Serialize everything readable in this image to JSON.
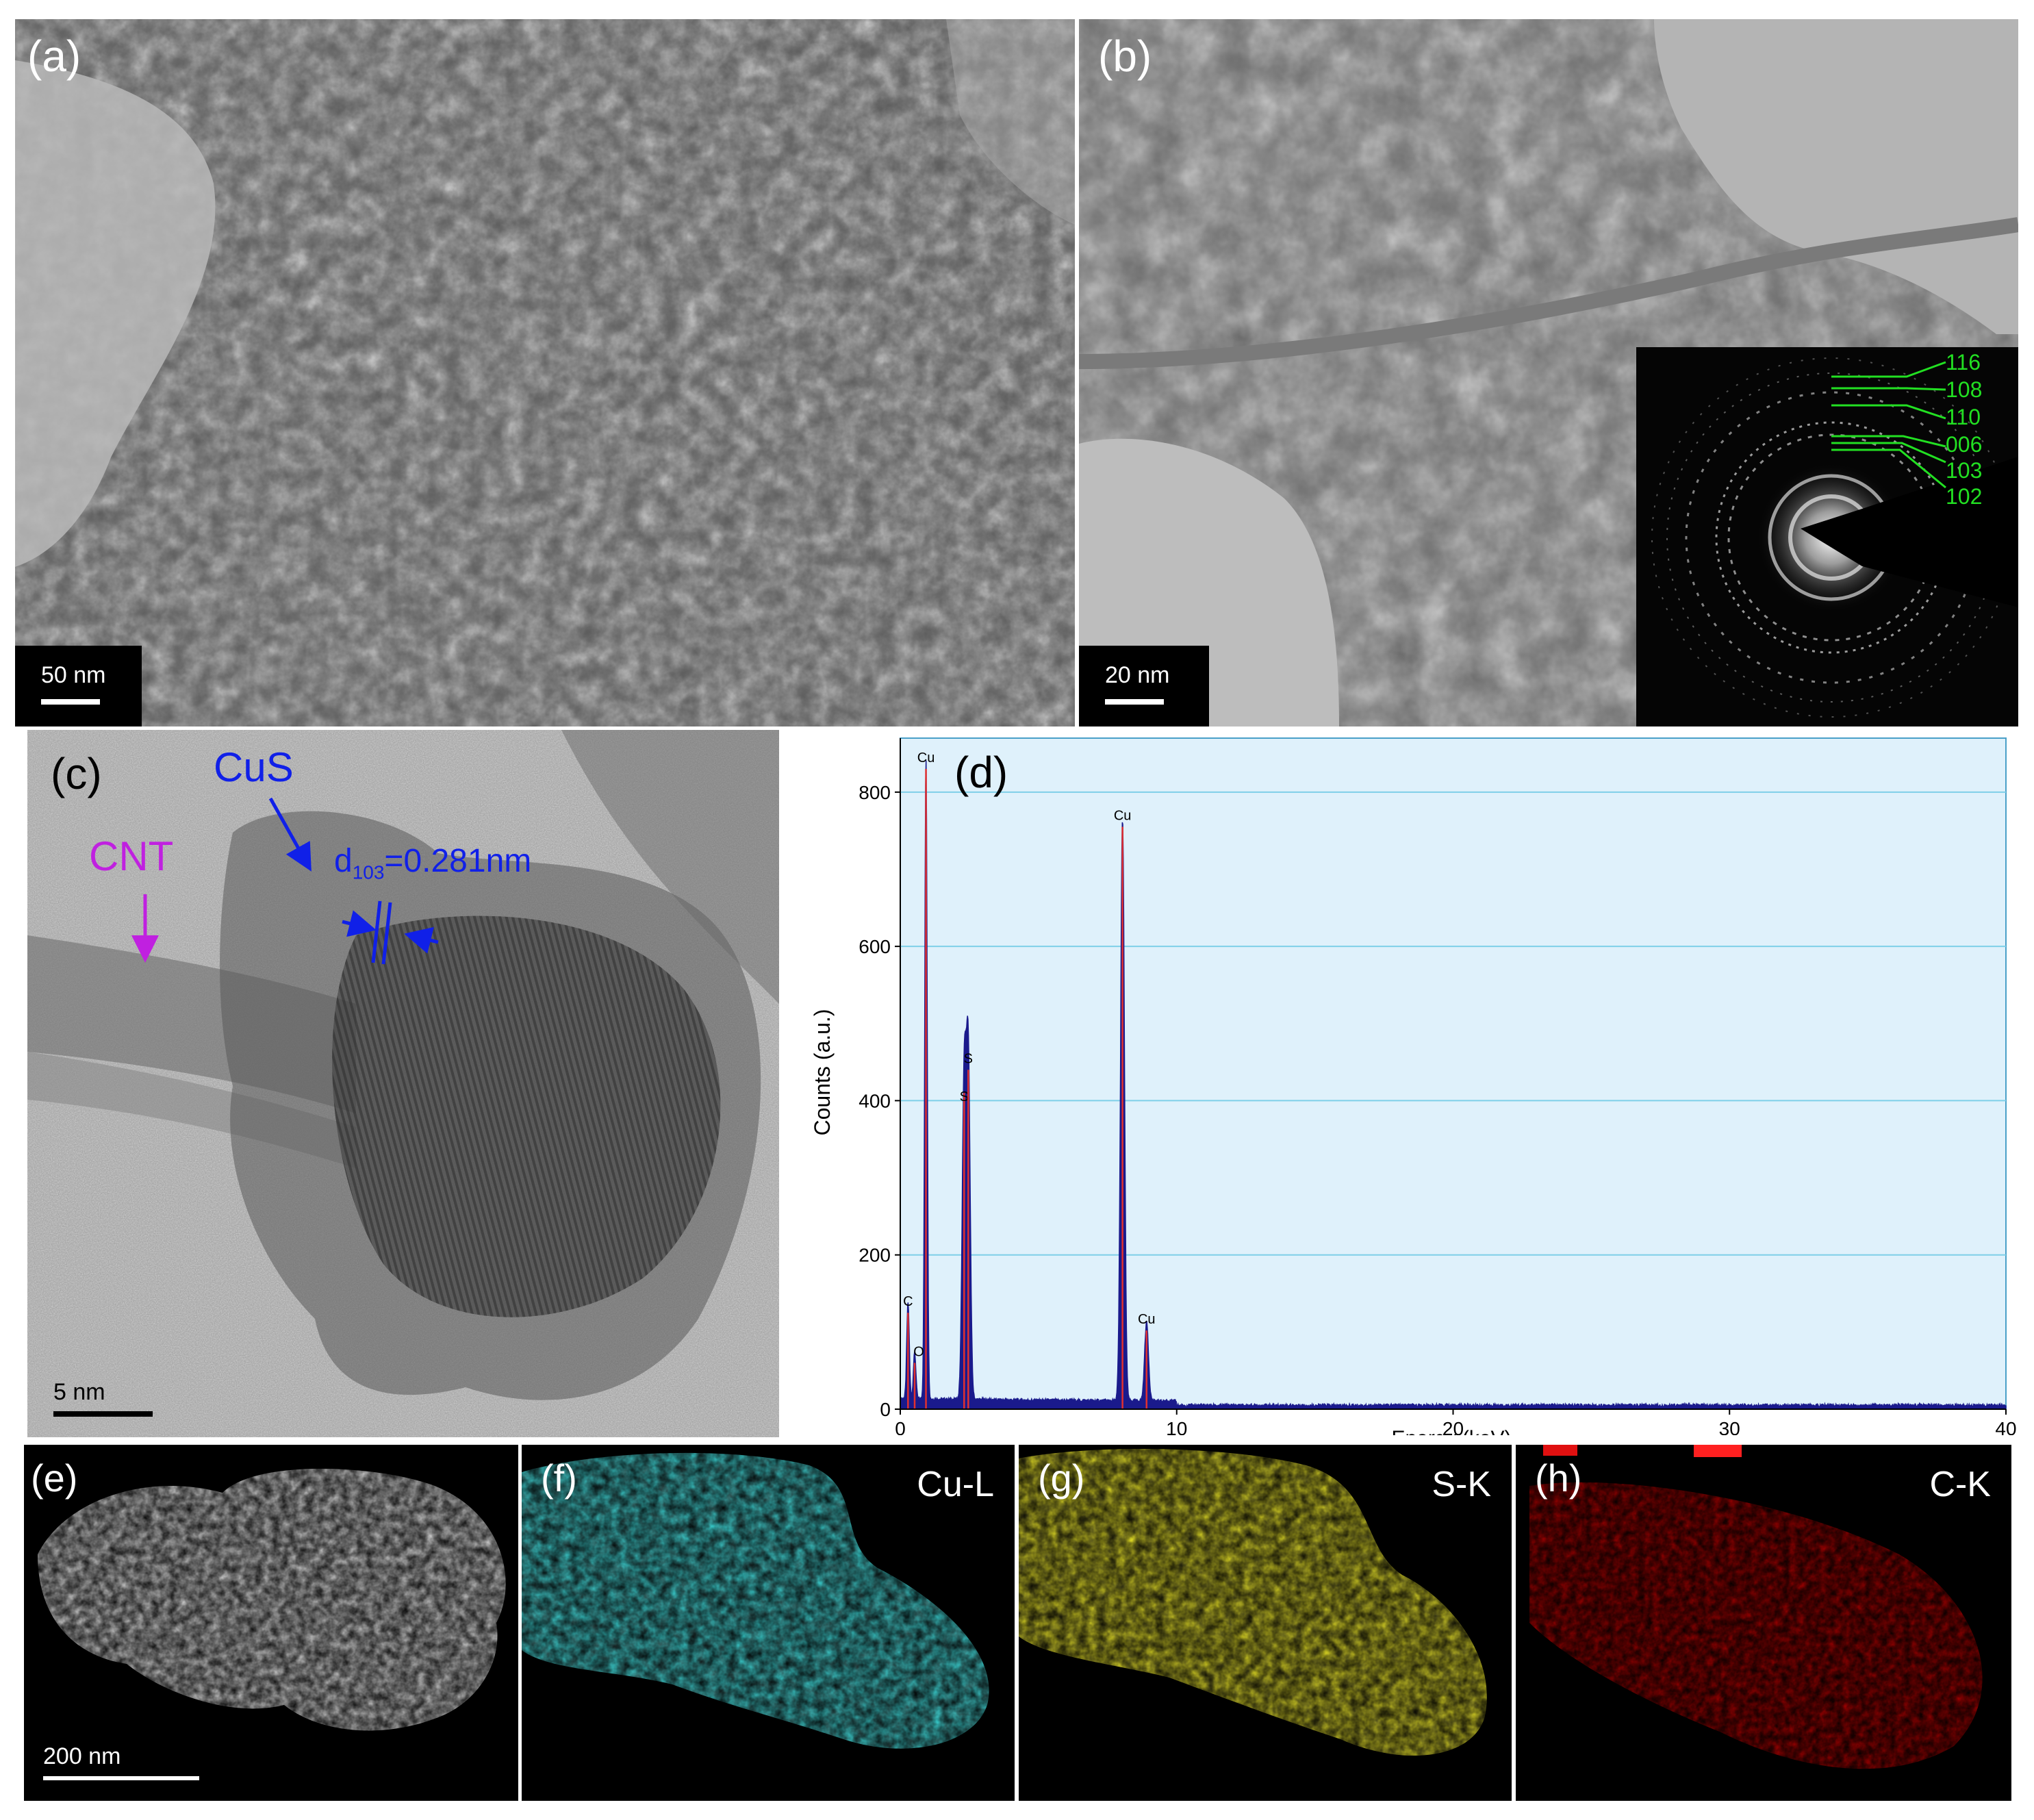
{
  "panel_a": {
    "label": "(a)",
    "scale_bar": "50 nm"
  },
  "panel_b": {
    "label": "(b)",
    "scale_bar": "20 nm",
    "saed_rings": [
      "116",
      "108",
      "110",
      "006",
      "103",
      "102"
    ]
  },
  "panel_c": {
    "label": "(c)",
    "scale_bar": "5 nm",
    "cus_label": "CuS",
    "cnt_label": "CNT",
    "d_prefix": "d",
    "d_sub": "103",
    "d_value": "=0.281nm",
    "colors": {
      "cus": "#1020e8",
      "cnt": "#c020e0"
    }
  },
  "panel_d": {
    "label": "(d)"
  },
  "chart_data": {
    "type": "line",
    "title": "",
    "xlabel": "Energy (keV)",
    "ylabel": "Counts (a.u.)",
    "xlim": [
      0,
      40
    ],
    "ylim": [
      0,
      870
    ],
    "xticks": [
      0,
      10,
      20,
      30,
      40
    ],
    "yticks": [
      0,
      200,
      400,
      600,
      800
    ],
    "grid": true,
    "peaks": [
      {
        "element": "C",
        "energy": 0.28,
        "counts": 125
      },
      {
        "element": "O",
        "energy": 0.52,
        "counts": 60
      },
      {
        "element": "Cu",
        "energy": 0.93,
        "counts": 830
      },
      {
        "element": "S",
        "energy": 2.31,
        "counts": 410
      },
      {
        "element": "S",
        "energy": 2.46,
        "counts": 440
      },
      {
        "element": "Cu",
        "energy": 8.04,
        "counts": 755
      },
      {
        "element": "Cu",
        "energy": 8.91,
        "counts": 102
      }
    ],
    "colors": {
      "background": "#dff1fb",
      "spectrum": "#1a1a8c",
      "peak_marker": "#e03030",
      "grid": "#7ecfe8"
    }
  },
  "panel_e": {
    "label": "(e)",
    "scale_bar": "200 nm"
  },
  "panel_f": {
    "label": "(f)",
    "element": "Cu-L",
    "color": "#1bc8c8"
  },
  "panel_g": {
    "label": "(g)",
    "element": "S-K",
    "color": "#d8d010"
  },
  "panel_h": {
    "label": "(h)",
    "element": "C-K",
    "color": "#b01010"
  }
}
